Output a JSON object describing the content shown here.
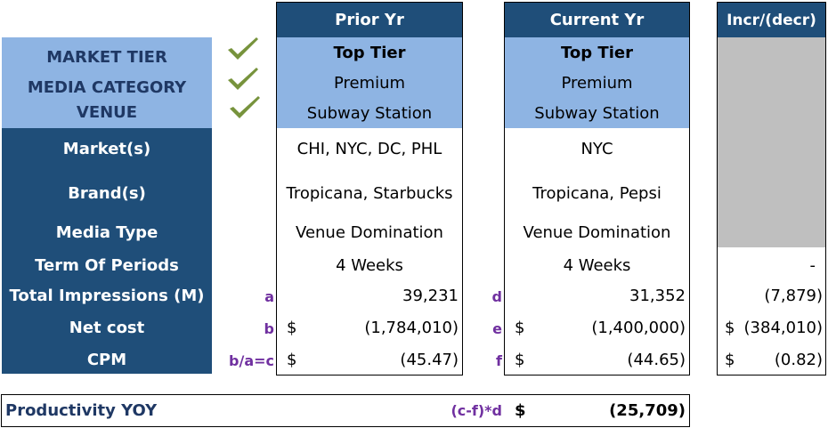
{
  "headers": {
    "prior": "Prior Yr",
    "current": "Current Yr",
    "delta": "Incr/(decr)"
  },
  "tier_labels": [
    "MARKET TIER",
    "MEDIA CATEGORY",
    "VENUE"
  ],
  "tier_rows": {
    "prior": [
      "Top Tier",
      "Premium",
      "Subway Station"
    ],
    "current": [
      "Top Tier",
      "Premium",
      "Subway Station"
    ]
  },
  "detail_labels": {
    "markets": "Market(s)",
    "brands": "Brand(s)",
    "media_type": "Media Type",
    "term": "Term Of Periods",
    "impressions": "Total Impressions (M)",
    "net_cost": "Net cost",
    "cpm": "CPM"
  },
  "prior": {
    "markets": "CHI, NYC, DC, PHL",
    "brands": "Tropicana, Starbucks",
    "media_type": "Venue Domination",
    "term": "4 Weeks",
    "impressions": "39,231",
    "net_cost": "(1,784,010)",
    "cpm": "(45.47)"
  },
  "current": {
    "markets": "NYC",
    "brands": "Tropicana, Pepsi",
    "media_type": "Venue Domination",
    "term": "4 Weeks",
    "impressions": "31,352",
    "net_cost": "(1,400,000)",
    "cpm": "(44.65)"
  },
  "delta": {
    "term": "-",
    "impressions": "(7,879)",
    "net_cost": "(384,010)",
    "cpm": "(0.82)"
  },
  "currency_symbol": "$",
  "formula_prior": {
    "impressions": "a",
    "net_cost": "b",
    "cpm": "b/a=c"
  },
  "formula_current": {
    "impressions": "d",
    "net_cost": "e",
    "cpm": "f"
  },
  "productivity": {
    "label": "Productivity YOY",
    "formula": "(c-f)*d",
    "currency": "$",
    "value": "(25,709)"
  },
  "colors": {
    "navy": "#1f4e79",
    "light_blue": "#8eb4e3",
    "gray": "#bfbfbf",
    "check_green": "#77933c",
    "formula_purple": "#7030a0"
  },
  "icons": [
    "check-icon",
    "check-icon",
    "check-icon"
  ]
}
